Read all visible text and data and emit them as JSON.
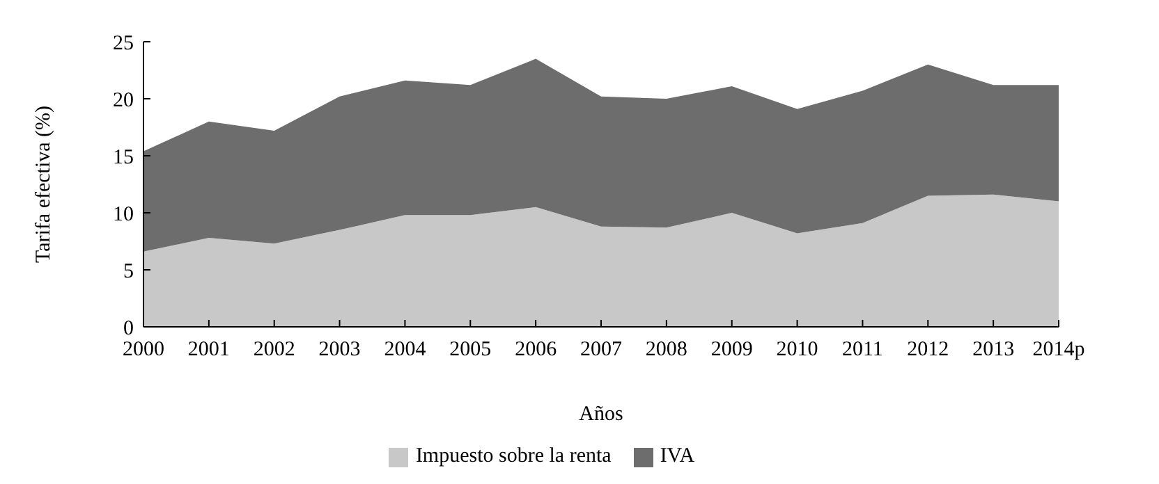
{
  "chart_data": {
    "type": "area",
    "stacked": true,
    "xlabel": "Años",
    "ylabel": "Tarifa efectiva (%)",
    "categories": [
      "2000",
      "2001",
      "2002",
      "2003",
      "2004",
      "2005",
      "2006",
      "2007",
      "2008",
      "2009",
      "2010",
      "2011",
      "2012",
      "2013",
      "2014p"
    ],
    "series": [
      {
        "name": "Impuesto sobre la renta",
        "color": "#c8c8c8",
        "values": [
          6.6,
          7.8,
          7.3,
          8.5,
          9.8,
          9.8,
          10.5,
          8.8,
          8.7,
          10.0,
          8.2,
          9.1,
          11.5,
          11.6,
          11.0
        ]
      },
      {
        "name": "IVA",
        "color": "#6d6d6d",
        "values": [
          8.8,
          10.2,
          9.9,
          11.7,
          11.8,
          11.4,
          13.0,
          11.4,
          11.3,
          11.1,
          10.9,
          11.6,
          11.5,
          9.6,
          10.2
        ]
      }
    ],
    "ylim": [
      0,
      25
    ],
    "yticks": [
      0,
      5,
      10,
      15,
      20,
      25
    ],
    "grid": false,
    "legend": "bottom"
  }
}
